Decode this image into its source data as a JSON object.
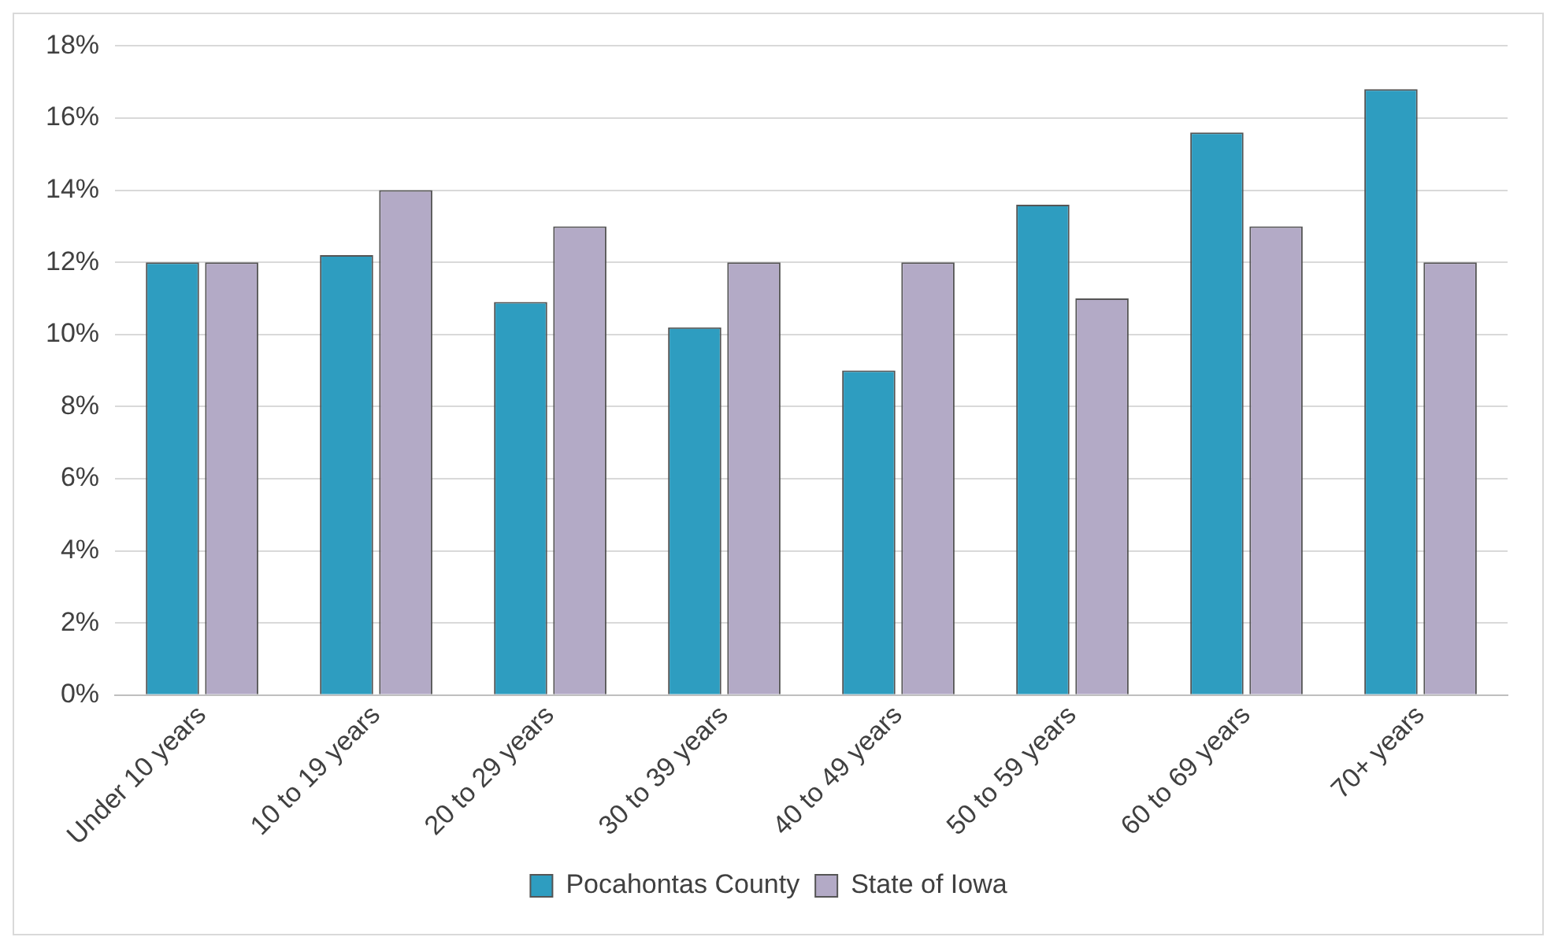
{
  "chart_data": {
    "type": "bar",
    "categories": [
      "Under 10 years",
      "10 to 19 years",
      "20 to 29 years",
      "30 to 39 years",
      "40 to 49 years",
      "50 to 59 years",
      "60 to 69 years",
      "70+ years"
    ],
    "series": [
      {
        "name": "Pocahontas County",
        "color": "#2e9dc0",
        "values": [
          12.0,
          12.2,
          10.9,
          10.2,
          9.0,
          13.6,
          15.6,
          16.8
        ]
      },
      {
        "name": "State of Iowa",
        "color": "#b3aac6",
        "values": [
          12.0,
          14.0,
          13.0,
          12.0,
          12.0,
          11.0,
          13.0,
          12.0
        ]
      }
    ],
    "ylim": [
      0,
      18
    ],
    "yticks": [
      {
        "value": 0,
        "label": "0%"
      },
      {
        "value": 2,
        "label": "2%"
      },
      {
        "value": 4,
        "label": "4%"
      },
      {
        "value": 6,
        "label": "6%"
      },
      {
        "value": 8,
        "label": "8%"
      },
      {
        "value": 10,
        "label": "10%"
      },
      {
        "value": 12,
        "label": "12%"
      },
      {
        "value": 14,
        "label": "14%"
      },
      {
        "value": 16,
        "label": "16%"
      },
      {
        "value": 18,
        "label": "18%"
      }
    ],
    "grid": "y",
    "legend": "bottom"
  }
}
